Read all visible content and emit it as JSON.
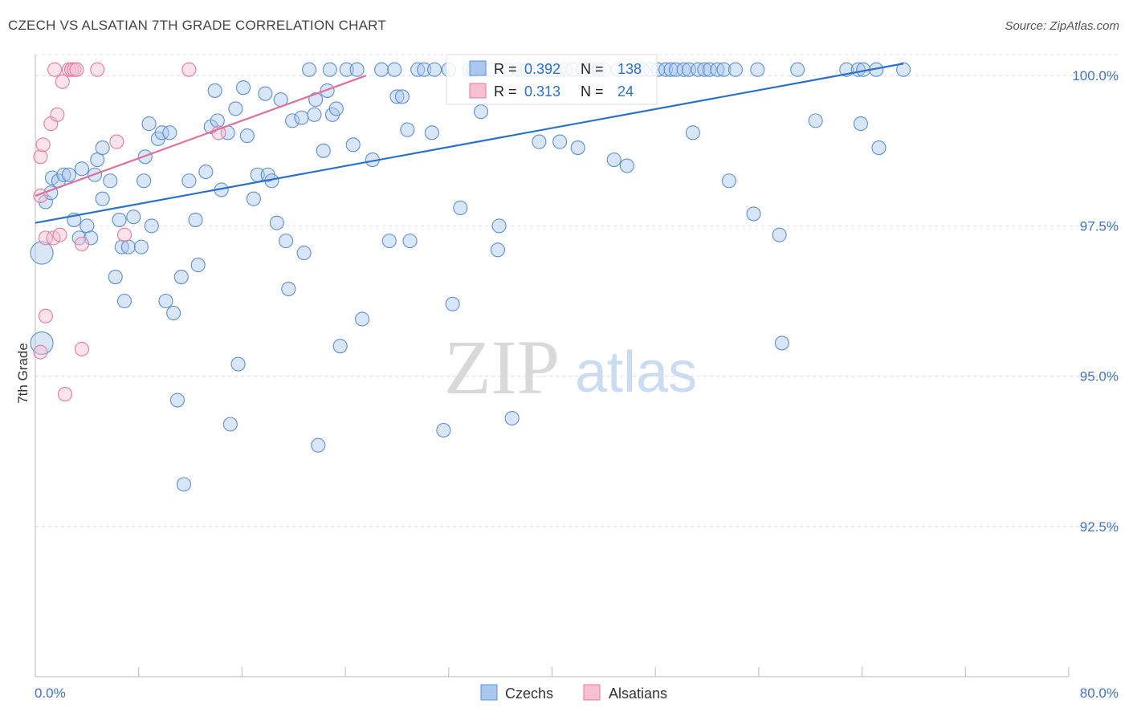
{
  "title": "CZECH VS ALSATIAN 7TH GRADE CORRELATION CHART",
  "source": "Source: ZipAtlas.com",
  "watermark": {
    "zip": "ZIP",
    "atlas": "atlas"
  },
  "colors": {
    "blue": "#5b8fd6",
    "blue_fill": "#aac8ee",
    "blue_line": "#2a70c8",
    "pink": "#e57aa0",
    "pink_fill": "#f6bfd2",
    "pink_line": "#e0709a",
    "axis_text": "#3f72c8",
    "grid": "#dddddd"
  },
  "legend_top": [
    {
      "r_label": "R =",
      "r_value": "0.392",
      "n_label": "N =",
      "n_value": "138"
    },
    {
      "r_label": "R =",
      "r_value": "0.313",
      "n_label": "N =",
      "n_value": "24"
    }
  ],
  "chart_data": {
    "type": "scatter",
    "title": "CZECH VS ALSATIAN 7TH GRADE CORRELATION CHART",
    "xlabel": "",
    "ylabel": "7th Grade",
    "xlim": [
      0,
      80
    ],
    "ylim": [
      90.0,
      100.35
    ],
    "x_tick_labels": [
      "0.0%",
      "80.0%"
    ],
    "y_ticks": [
      92.5,
      95.0,
      97.5,
      100.0
    ],
    "y_tick_labels": [
      "92.5%",
      "95.0%",
      "97.5%",
      "100.0%"
    ],
    "legend": [
      "Czechs",
      "Alsatians"
    ],
    "series": [
      {
        "name": "Czechs",
        "r": 0.392,
        "n": 138,
        "trend": {
          "x0": 0,
          "y0": 97.55,
          "x1": 67.2,
          "y1": 100.2
        },
        "points": [
          [
            0.5,
            95.55,
            3
          ],
          [
            0.5,
            97.05,
            3
          ],
          [
            0.8,
            97.9,
            1
          ],
          [
            1.2,
            98.05,
            1
          ],
          [
            1.3,
            98.3,
            1
          ],
          [
            1.8,
            98.25,
            1
          ],
          [
            2.2,
            98.35,
            1
          ],
          [
            2.6,
            98.35,
            1
          ],
          [
            3.0,
            97.6,
            1
          ],
          [
            3.4,
            97.3,
            1
          ],
          [
            3.6,
            98.45,
            1
          ],
          [
            4.0,
            97.5,
            1
          ],
          [
            4.3,
            97.3,
            1
          ],
          [
            4.6,
            98.35,
            1
          ],
          [
            4.8,
            98.6,
            1
          ],
          [
            5.2,
            98.8,
            1
          ],
          [
            5.2,
            97.95,
            1
          ],
          [
            5.8,
            98.25,
            1
          ],
          [
            6.2,
            96.65,
            1
          ],
          [
            6.5,
            97.6,
            1
          ],
          [
            6.7,
            97.15,
            1
          ],
          [
            6.9,
            96.25,
            1
          ],
          [
            7.2,
            97.15,
            1
          ],
          [
            7.6,
            97.65,
            1
          ],
          [
            8.2,
            97.15,
            1
          ],
          [
            8.4,
            98.25,
            1
          ],
          [
            8.5,
            98.65,
            1
          ],
          [
            8.8,
            99.2,
            1
          ],
          [
            9.0,
            97.5,
            1
          ],
          [
            9.5,
            98.95,
            1
          ],
          [
            9.8,
            99.05,
            1
          ],
          [
            10.1,
            96.25,
            1
          ],
          [
            10.4,
            99.05,
            1
          ],
          [
            10.7,
            96.05,
            1
          ],
          [
            11.0,
            94.6,
            1
          ],
          [
            11.3,
            96.65,
            1
          ],
          [
            11.5,
            93.2,
            1
          ],
          [
            11.9,
            98.25,
            1
          ],
          [
            12.4,
            97.6,
            1
          ],
          [
            12.6,
            96.85,
            1
          ],
          [
            13.2,
            98.4,
            1
          ],
          [
            13.6,
            99.15,
            1
          ],
          [
            13.9,
            99.75,
            1
          ],
          [
            14.1,
            99.25,
            1
          ],
          [
            14.4,
            98.1,
            1
          ],
          [
            14.9,
            99.05,
            1
          ],
          [
            15.1,
            94.2,
            1
          ],
          [
            15.5,
            99.45,
            1
          ],
          [
            15.7,
            95.2,
            1
          ],
          [
            16.1,
            99.8,
            1
          ],
          [
            16.4,
            99.0,
            1
          ],
          [
            16.9,
            97.95,
            1
          ],
          [
            17.2,
            98.35,
            1
          ],
          [
            17.8,
            99.7,
            1
          ],
          [
            18.0,
            98.35,
            1
          ],
          [
            18.3,
            98.25,
            1
          ],
          [
            18.7,
            97.55,
            1
          ],
          [
            19.0,
            99.6,
            1
          ],
          [
            19.4,
            97.25,
            1
          ],
          [
            19.6,
            96.45,
            1
          ],
          [
            19.9,
            99.25,
            1
          ],
          [
            20.6,
            99.3,
            1
          ],
          [
            20.8,
            97.05,
            1
          ],
          [
            21.2,
            100.1,
            1
          ],
          [
            21.6,
            99.35,
            1
          ],
          [
            21.7,
            99.6,
            1
          ],
          [
            21.9,
            93.85,
            1
          ],
          [
            22.3,
            98.75,
            1
          ],
          [
            22.6,
            99.75,
            1
          ],
          [
            22.8,
            100.1,
            1
          ],
          [
            23.0,
            99.35,
            1
          ],
          [
            23.3,
            99.45,
            1
          ],
          [
            23.6,
            95.5,
            1
          ],
          [
            24.1,
            100.1,
            1
          ],
          [
            24.6,
            98.85,
            1
          ],
          [
            24.9,
            100.1,
            1
          ],
          [
            25.3,
            95.95,
            1
          ],
          [
            26.1,
            98.6,
            1
          ],
          [
            26.8,
            100.1,
            1
          ],
          [
            27.4,
            97.25,
            1
          ],
          [
            27.8,
            100.1,
            1
          ],
          [
            28.0,
            99.65,
            1
          ],
          [
            28.4,
            99.65,
            1
          ],
          [
            28.8,
            99.1,
            1
          ],
          [
            29.0,
            97.25,
            1
          ],
          [
            29.6,
            100.1,
            1
          ],
          [
            30.1,
            100.1,
            1
          ],
          [
            30.7,
            99.05,
            1
          ],
          [
            30.9,
            100.1,
            1
          ],
          [
            31.6,
            94.1,
            1
          ],
          [
            32.0,
            100.1,
            1
          ],
          [
            32.3,
            96.2,
            1
          ],
          [
            32.9,
            97.8,
            1
          ],
          [
            33.6,
            100.1,
            1
          ],
          [
            33.9,
            100.1,
            1
          ],
          [
            34.5,
            99.4,
            1
          ],
          [
            35.3,
            100.1,
            1
          ],
          [
            35.8,
            97.1,
            1
          ],
          [
            35.9,
            97.5,
            1
          ],
          [
            36.6,
            100.1,
            1
          ],
          [
            36.9,
            94.3,
            1
          ],
          [
            37.4,
            100.1,
            1
          ],
          [
            38.1,
            100.1,
            1
          ],
          [
            38.6,
            100.1,
            1
          ],
          [
            39.0,
            98.9,
            1
          ],
          [
            39.6,
            100.1,
            1
          ],
          [
            40.2,
            100.1,
            1
          ],
          [
            40.6,
            98.9,
            1
          ],
          [
            41.0,
            100.1,
            1
          ],
          [
            41.6,
            100.1,
            1
          ],
          [
            42.0,
            98.8,
            1
          ],
          [
            42.4,
            100.1,
            1
          ],
          [
            43.0,
            100.1,
            1
          ],
          [
            43.6,
            100.1,
            1
          ],
          [
            44.0,
            100.1,
            1
          ],
          [
            44.8,
            98.6,
            1
          ],
          [
            45.1,
            100.1,
            1
          ],
          [
            45.8,
            98.5,
            1
          ],
          [
            46.4,
            100.1,
            1
          ],
          [
            47.0,
            100.1,
            1
          ],
          [
            47.6,
            100.1,
            1
          ],
          [
            48.2,
            100.1,
            1
          ],
          [
            48.8,
            100.1,
            1
          ],
          [
            49.2,
            100.1,
            1
          ],
          [
            49.6,
            100.1,
            1
          ],
          [
            50.2,
            100.1,
            1
          ],
          [
            50.6,
            100.1,
            1
          ],
          [
            50.9,
            99.05,
            1
          ],
          [
            51.3,
            100.1,
            1
          ],
          [
            51.8,
            100.1,
            1
          ],
          [
            52.2,
            100.1,
            1
          ],
          [
            52.8,
            100.1,
            1
          ],
          [
            53.3,
            100.1,
            1
          ],
          [
            53.7,
            98.25,
            1
          ],
          [
            54.2,
            100.1,
            1
          ],
          [
            55.6,
            97.7,
            1
          ],
          [
            55.9,
            100.1,
            1
          ],
          [
            57.6,
            97.35,
            1
          ],
          [
            57.8,
            95.55,
            1
          ],
          [
            59.0,
            100.1,
            1
          ],
          [
            60.4,
            99.25,
            1
          ],
          [
            62.8,
            100.1,
            1
          ],
          [
            63.7,
            100.1,
            1
          ],
          [
            63.9,
            99.2,
            1
          ],
          [
            64.1,
            100.1,
            1
          ],
          [
            65.1,
            100.1,
            1
          ],
          [
            65.3,
            98.8,
            1
          ],
          [
            67.2,
            100.1,
            1
          ]
        ]
      },
      {
        "name": "Alsatians",
        "r": 0.313,
        "n": 24,
        "trend": {
          "x0": 0,
          "y0": 98.0,
          "x1": 25.6,
          "y1": 100.0
        },
        "points": [
          [
            0.4,
            95.4,
            1
          ],
          [
            0.4,
            98.0,
            1
          ],
          [
            0.4,
            98.65,
            1
          ],
          [
            0.6,
            98.85,
            1
          ],
          [
            0.8,
            96.0,
            1
          ],
          [
            0.8,
            97.3,
            1
          ],
          [
            1.2,
            99.2,
            1
          ],
          [
            1.4,
            97.3,
            1
          ],
          [
            1.5,
            100.1,
            1
          ],
          [
            1.7,
            99.35,
            1
          ],
          [
            1.9,
            97.35,
            1
          ],
          [
            2.1,
            99.9,
            1
          ],
          [
            2.3,
            94.7,
            1
          ],
          [
            2.6,
            100.1,
            1
          ],
          [
            2.8,
            100.1,
            1
          ],
          [
            3.0,
            100.1,
            1
          ],
          [
            3.2,
            100.1,
            1
          ],
          [
            3.6,
            95.45,
            1
          ],
          [
            3.6,
            97.2,
            1
          ],
          [
            4.8,
            100.1,
            1
          ],
          [
            6.3,
            98.9,
            1
          ],
          [
            6.9,
            97.35,
            1
          ],
          [
            11.9,
            100.1,
            1
          ],
          [
            14.2,
            99.05,
            1
          ]
        ]
      }
    ]
  }
}
